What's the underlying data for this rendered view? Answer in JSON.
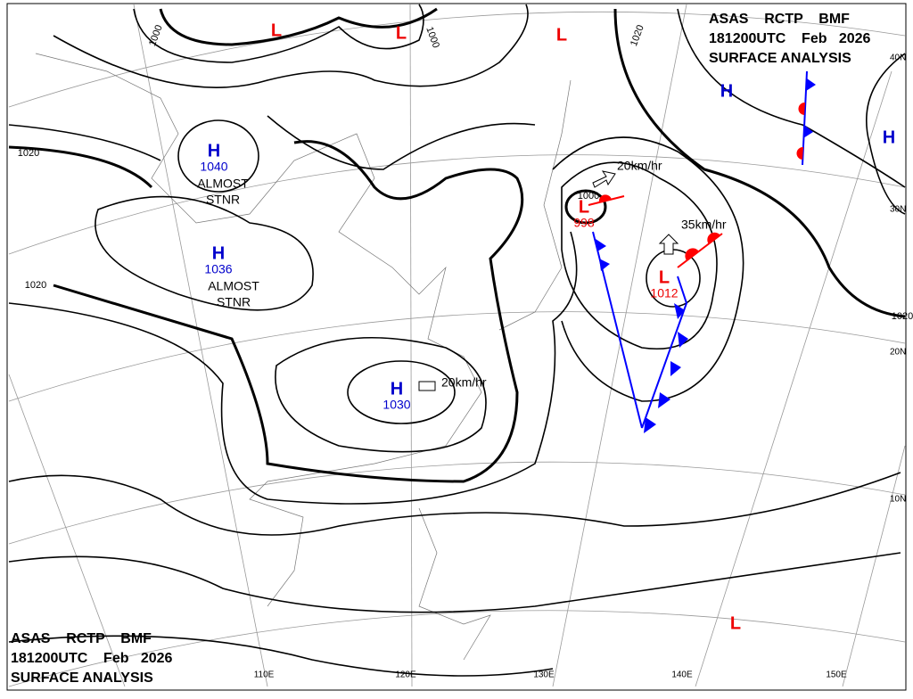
{
  "header_top": [
    "ASAS    RCTP    BMF",
    "181200UTC    Feb   2026",
    "SURFACE ANALYSIS"
  ],
  "header_bottom": [
    "ASAS    RCTP    BMF",
    "181200UTC    Feb   2026",
    "SURFACE ANALYSIS"
  ],
  "pressure_centers": [
    {
      "type": "H",
      "pressure": 1040
    },
    {
      "type": "H",
      "pressure": 1036
    },
    {
      "type": "H",
      "pressure": 1030
    },
    {
      "type": "H"
    },
    {
      "type": "H"
    },
    {
      "type": "L"
    },
    {
      "type": "L"
    },
    {
      "type": "L"
    },
    {
      "type": "L",
      "pressure": 998
    },
    {
      "type": "L",
      "pressure": 1012
    },
    {
      "type": "L"
    }
  ],
  "isobar_labels": [
    1000,
    1000,
    1020,
    1020,
    1020,
    1020,
    1000
  ],
  "motions": [
    "20km/hr",
    "35km/hr",
    "20km/hr"
  ],
  "notes": [
    "ALMOST\nSTNR",
    "ALMOST\nSTNR"
  ],
  "latitudes": [
    "40N",
    "30N",
    "20N",
    "10N"
  ],
  "longitudes": [
    "110E",
    "120E",
    "130E",
    "140E",
    "150E"
  ]
}
